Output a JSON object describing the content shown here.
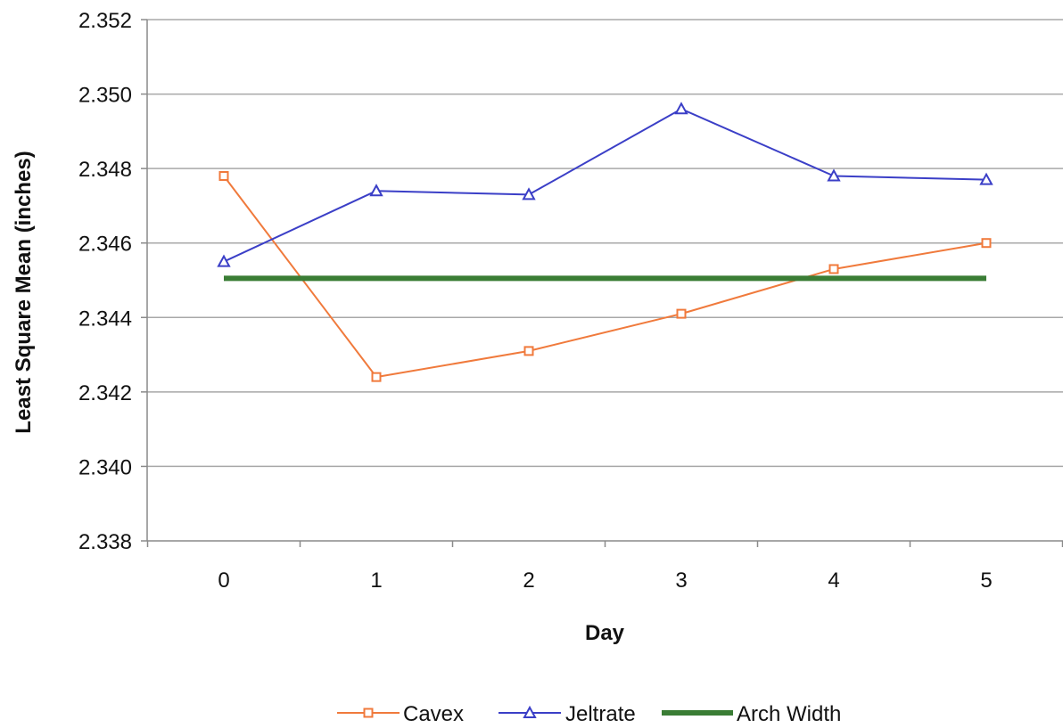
{
  "colors": {
    "cavex": "#f07a3c",
    "jeltrate": "#3b3fc7",
    "arch_width": "#3a7d35",
    "grid": "#a8a8a8",
    "axis": "#8a8a8a"
  },
  "chart_data": {
    "type": "line",
    "title": "",
    "xlabel": "Day",
    "ylabel": "Least Square Mean (inches)",
    "categories": [
      "0",
      "1",
      "2",
      "3",
      "4",
      "5"
    ],
    "ylim": [
      2.338,
      2.352
    ],
    "yticks": [
      "2.338",
      "2.340",
      "2.342",
      "2.344",
      "2.346",
      "2.348",
      "2.350",
      "2.352"
    ],
    "grid": true,
    "legend_position": "bottom",
    "series": [
      {
        "name": "Cavex",
        "marker": "square",
        "color": "#f07a3c",
        "values": [
          2.3478,
          2.3424,
          2.3431,
          2.3441,
          2.3453,
          2.346
        ]
      },
      {
        "name": "Jeltrate",
        "marker": "triangle",
        "color": "#3b3fc7",
        "values": [
          2.3455,
          2.3474,
          2.3473,
          2.3496,
          2.3478,
          2.3477
        ]
      },
      {
        "name": "Arch Width",
        "marker": "none",
        "color": "#3a7d35",
        "values": [
          2.34505,
          2.34505,
          2.34505,
          2.34505,
          2.34505,
          2.34505
        ]
      }
    ]
  }
}
